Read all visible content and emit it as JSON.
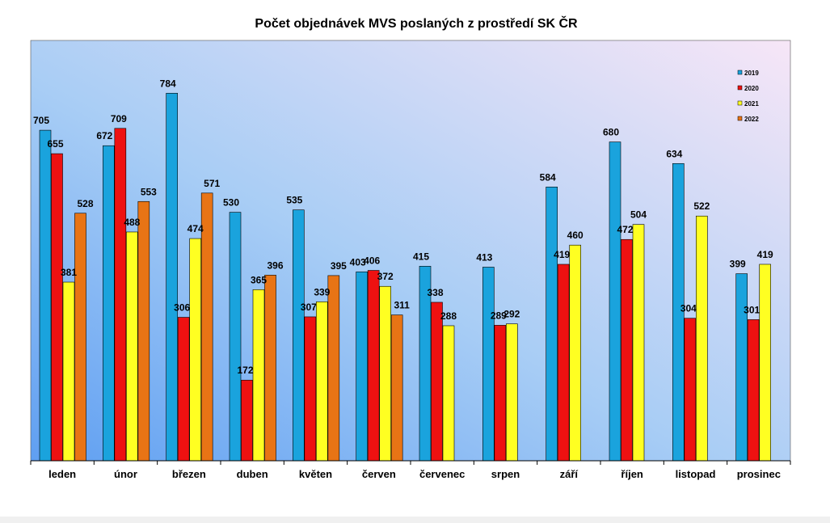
{
  "chart_data": {
    "type": "bar",
    "title": "Počet objednávek MVS poslaných z prostředí SK ČR",
    "xlabel": "",
    "ylabel": "",
    "ylim": [
      0,
      900
    ],
    "grid": false,
    "legend_position": "top-right",
    "categories": [
      "leden",
      "únor",
      "březen",
      "duben",
      "květen",
      "červen",
      "červenec",
      "srpen",
      "září",
      "říjen",
      "listopad",
      "prosinec"
    ],
    "series": [
      {
        "name": "2019",
        "color": "#1aa3dd",
        "values": [
          705,
          672,
          784,
          530,
          535,
          403,
          415,
          413,
          584,
          680,
          634,
          399
        ]
      },
      {
        "name": "2020",
        "color": "#ee1111",
        "values": [
          655,
          709,
          306,
          172,
          307,
          406,
          338,
          289,
          419,
          472,
          304,
          301
        ]
      },
      {
        "name": "2021",
        "color": "#ffff22",
        "values": [
          381,
          488,
          474,
          365,
          339,
          372,
          288,
          292,
          460,
          504,
          522,
          419
        ]
      },
      {
        "name": "2022",
        "color": "#e87415",
        "values": [
          528,
          553,
          571,
          396,
          395,
          311,
          null,
          null,
          null,
          null,
          null,
          null
        ]
      }
    ]
  }
}
